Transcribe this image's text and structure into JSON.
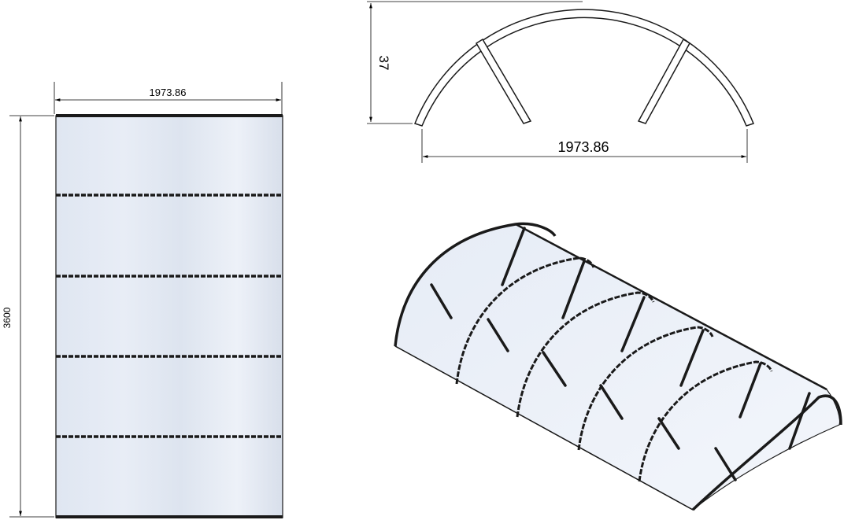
{
  "top_view": {
    "width_label": "1973.86",
    "length_label": "3600"
  },
  "front_view": {
    "height_label": "37",
    "width_label": "1973.86"
  },
  "colors": {
    "panel_fill": "#e3e9f3",
    "panel_highlight": "#f2f5fa",
    "frame": "#1a1a1a",
    "dimension_line": "#000000"
  }
}
